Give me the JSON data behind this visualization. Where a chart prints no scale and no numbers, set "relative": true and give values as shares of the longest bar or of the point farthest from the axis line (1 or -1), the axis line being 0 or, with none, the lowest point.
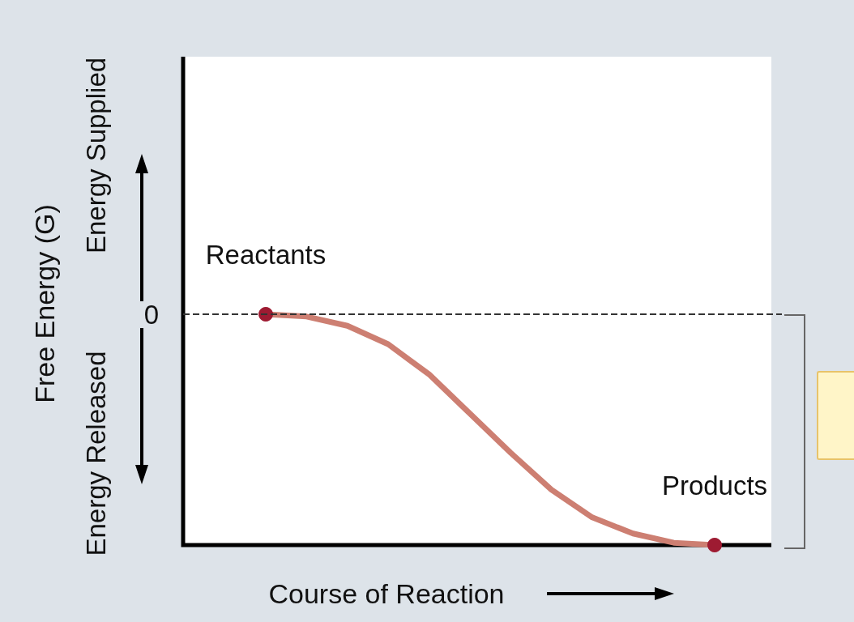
{
  "chart_data": {
    "type": "line",
    "relative": true,
    "xlabel": "Course of Reaction",
    "categories": [
      null,
      null,
      null,
      null,
      null,
      null,
      null,
      null,
      null,
      null,
      null,
      null
    ],
    "series": [
      {
        "color": "#cd7f72",
        "values": [
          0,
          -0.01,
          -0.05,
          -0.13,
          -0.26,
          -0.43,
          -0.6,
          -0.76,
          -0.88,
          -0.95,
          -0.99,
          -1
        ]
      }
    ],
    "ref_lines": [
      {
        "axis": "y",
        "value": 0,
        "label": "0",
        "line_style": "dashed",
        "color": "#333333"
      }
    ],
    "annotations": [
      "Free Energy (G)",
      "Energy Supplied",
      "Energy Released",
      "Reactants",
      "Products"
    ]
  }
}
